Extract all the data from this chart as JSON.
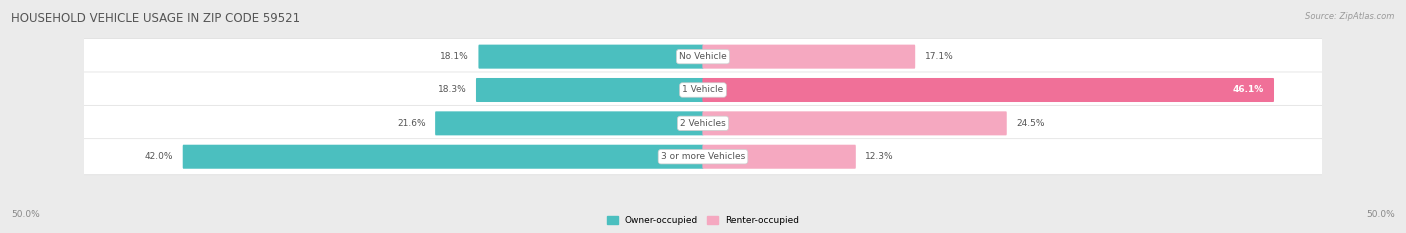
{
  "title": "HOUSEHOLD VEHICLE USAGE IN ZIP CODE 59521",
  "source": "Source: ZipAtlas.com",
  "categories": [
    "No Vehicle",
    "1 Vehicle",
    "2 Vehicles",
    "3 or more Vehicles"
  ],
  "owner_values": [
    18.1,
    18.3,
    21.6,
    42.0
  ],
  "renter_values": [
    17.1,
    46.1,
    24.5,
    12.3
  ],
  "owner_color": "#4BBFBF",
  "renter_color": "#F07098",
  "renter_color_light": "#F5A8C0",
  "owner_label": "Owner-occupied",
  "renter_label": "Renter-occupied",
  "axis_label_left": "50.0%",
  "axis_label_right": "50.0%",
  "max_val": 50.0,
  "bar_height": 0.62,
  "bg_color": "#ebebeb",
  "row_bg_color": "#f7f7f7",
  "title_fontsize": 8.5,
  "source_fontsize": 6.0,
  "value_fontsize": 6.5,
  "cat_fontsize": 6.5,
  "legend_fontsize": 6.5,
  "axis_fontsize": 6.5
}
